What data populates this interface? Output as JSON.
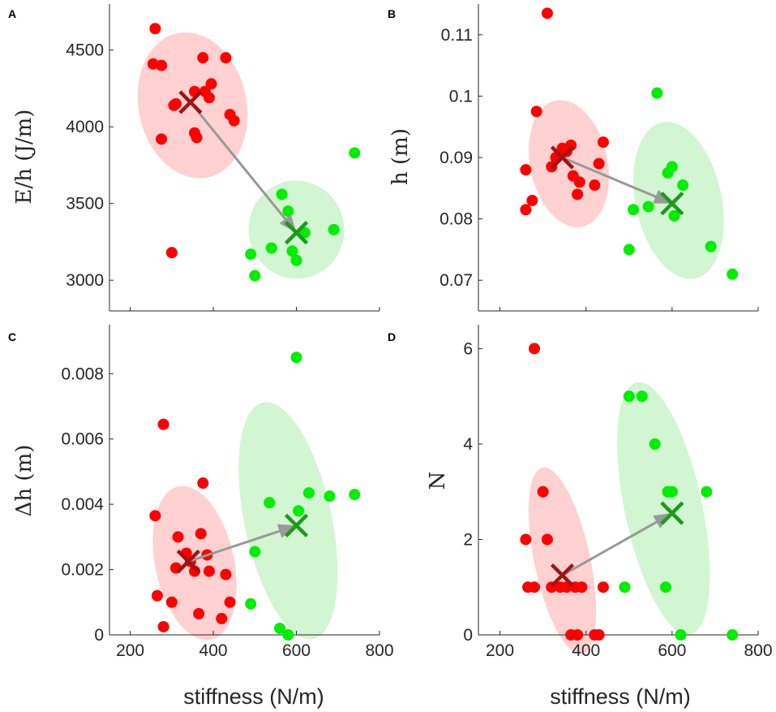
{
  "colors": {
    "red": "#ff0000",
    "green": "#00ee00",
    "dark_red": "#a01414",
    "dark_green": "#1c9a1c",
    "ellipse_red": "#ffcccc",
    "ellipse_green": "#ccf5cc",
    "arrow": "#999999"
  },
  "chart_data": [
    {
      "type": "scatter",
      "panel": "A",
      "ylabel": "E/h (J/m)",
      "xlabel": "",
      "xlim": [
        150,
        800
      ],
      "ylim": [
        2800,
        4800
      ],
      "xticks": [
        200,
        400,
        600,
        800
      ],
      "yticks": [
        "3000",
        "3500",
        "4000",
        "4500"
      ],
      "show_x_tick_labels": false,
      "series": [
        {
          "name": "red",
          "points": [
            [
              260,
              4640
            ],
            [
              255,
              4410
            ],
            [
              275,
              4400
            ],
            [
              275,
              3920
            ],
            [
              310,
              4150
            ],
            [
              305,
              4140
            ],
            [
              355,
              3960
            ],
            [
              360,
              3930
            ],
            [
              355,
              4230
            ],
            [
              375,
              4450
            ],
            [
              380,
              4230
            ],
            [
              390,
              4190
            ],
            [
              395,
              4280
            ],
            [
              430,
              4450
            ],
            [
              440,
              4080
            ],
            [
              450,
              4040
            ],
            [
              300,
              3180
            ]
          ]
        },
        {
          "name": "green",
          "points": [
            [
              490,
              3170
            ],
            [
              500,
              3030
            ],
            [
              540,
              3210
            ],
            [
              565,
              3560
            ],
            [
              580,
              3450
            ],
            [
              590,
              3190
            ],
            [
              600,
              3130
            ],
            [
              620,
              3310
            ],
            [
              690,
              3330
            ],
            [
              740,
              3830
            ]
          ]
        }
      ],
      "means": {
        "red": [
          345,
          4160
        ],
        "green": [
          600,
          3310
        ]
      },
      "ellipses": {
        "red": {
          "cx": 350,
          "cy": 4140,
          "rx": 130,
          "ry": 480
        },
        "green": {
          "cx": 600,
          "cy": 3330,
          "rx": 115,
          "ry": 320
        }
      }
    },
    {
      "type": "scatter",
      "panel": "B",
      "ylabel": "h (m)",
      "xlabel": "",
      "xlim": [
        150,
        800
      ],
      "ylim": [
        0.065,
        0.115
      ],
      "xticks": [
        200,
        400,
        600,
        800
      ],
      "yticks": [
        "0.07",
        "0.08",
        "0.09",
        "0.1",
        "0.11"
      ],
      "show_x_tick_labels": false,
      "series": [
        {
          "name": "red",
          "points": [
            [
              310,
              0.1135
            ],
            [
              285,
              0.0975
            ],
            [
              260,
              0.088
            ],
            [
              260,
              0.0815
            ],
            [
              275,
              0.083
            ],
            [
              320,
              0.0885
            ],
            [
              330,
              0.09
            ],
            [
              340,
              0.0905
            ],
            [
              345,
              0.0915
            ],
            [
              355,
              0.091
            ],
            [
              365,
              0.092
            ],
            [
              370,
              0.087
            ],
            [
              380,
              0.084
            ],
            [
              385,
              0.086
            ],
            [
              420,
              0.0855
            ],
            [
              430,
              0.089
            ],
            [
              440,
              0.0925
            ]
          ]
        },
        {
          "name": "green",
          "points": [
            [
              500,
              0.075
            ],
            [
              510,
              0.0815
            ],
            [
              545,
              0.082
            ],
            [
              565,
              0.1005
            ],
            [
              590,
              0.0875
            ],
            [
              600,
              0.0885
            ],
            [
              605,
              0.0805
            ],
            [
              625,
              0.0855
            ],
            [
              690,
              0.0755
            ],
            [
              740,
              0.071
            ]
          ]
        }
      ],
      "means": {
        "red": [
          345,
          0.09
        ],
        "green": [
          600,
          0.0825
        ]
      },
      "ellipses": {
        "red": {
          "cx": 360,
          "cy": 0.089,
          "rx": 90,
          "ry": 0.0105
        },
        "green": {
          "cx": 615,
          "cy": 0.083,
          "rx": 100,
          "ry": 0.013
        }
      }
    },
    {
      "type": "scatter",
      "panel": "C",
      "ylabel": "Δh (m)",
      "xlabel": "stiffness (N/m)",
      "xlim": [
        150,
        800
      ],
      "ylim": [
        0,
        0.0095
      ],
      "xticks": [
        200,
        400,
        600,
        800
      ],
      "xtick_labels": [
        "200",
        "400",
        "600",
        "800"
      ],
      "yticks": [
        "0",
        "0.002",
        "0.004",
        "0.006",
        "0.008"
      ],
      "show_x_tick_labels": true,
      "series": [
        {
          "name": "red",
          "points": [
            [
              280,
              0.00645
            ],
            [
              260,
              0.00365
            ],
            [
              265,
              0.0012
            ],
            [
              280,
              0.00025
            ],
            [
              300,
              0.001
            ],
            [
              310,
              0.00205
            ],
            [
              315,
              0.003
            ],
            [
              335,
              0.0025
            ],
            [
              345,
              0.00225
            ],
            [
              355,
              0.00195
            ],
            [
              365,
              0.00065
            ],
            [
              370,
              0.0031
            ],
            [
              375,
              0.00465
            ],
            [
              385,
              0.00245
            ],
            [
              390,
              0.00195
            ],
            [
              420,
              0.0005
            ],
            [
              430,
              0.00185
            ],
            [
              440,
              0.001
            ]
          ]
        },
        {
          "name": "green",
          "points": [
            [
              490,
              0.00095
            ],
            [
              500,
              0.00255
            ],
            [
              535,
              0.00405
            ],
            [
              560,
              0.0002
            ],
            [
              580,
              0.0
            ],
            [
              600,
              0.0085
            ],
            [
              605,
              0.0038
            ],
            [
              630,
              0.00435
            ],
            [
              680,
              0.00425
            ],
            [
              740,
              0.0043
            ]
          ]
        }
      ],
      "means": {
        "red": [
          340,
          0.00225
        ],
        "green": [
          600,
          0.00335
        ]
      },
      "ellipses": {
        "red": {
          "cx": 355,
          "cy": 0.0022,
          "rx": 95,
          "ry": 0.0024
        },
        "green": {
          "cx": 580,
          "cy": 0.0035,
          "rx": 105,
          "ry": 0.0037
        }
      }
    },
    {
      "type": "scatter",
      "panel": "D",
      "ylabel": "N",
      "xlabel": "stiffness (N/m)",
      "xlim": [
        150,
        800
      ],
      "ylim": [
        0,
        6.5
      ],
      "xticks": [
        200,
        400,
        600,
        800
      ],
      "xtick_labels": [
        "200",
        "400",
        "600",
        "800"
      ],
      "yticks": [
        "0",
        "2",
        "4",
        "6"
      ],
      "show_x_tick_labels": true,
      "series": [
        {
          "name": "red",
          "points": [
            [
              280,
              6
            ],
            [
              260,
              2
            ],
            [
              265,
              1
            ],
            [
              280,
              1
            ],
            [
              300,
              3
            ],
            [
              310,
              2
            ],
            [
              320,
              1
            ],
            [
              340,
              1
            ],
            [
              355,
              1
            ],
            [
              365,
              0
            ],
            [
              375,
              1
            ],
            [
              380,
              0
            ],
            [
              390,
              1
            ],
            [
              420,
              0
            ],
            [
              430,
              0
            ],
            [
              440,
              1
            ]
          ]
        },
        {
          "name": "green",
          "points": [
            [
              490,
              1
            ],
            [
              500,
              5
            ],
            [
              530,
              5
            ],
            [
              560,
              4
            ],
            [
              585,
              1
            ],
            [
              590,
              3
            ],
            [
              600,
              3
            ],
            [
              620,
              0
            ],
            [
              680,
              3
            ],
            [
              740,
              0
            ]
          ]
        }
      ],
      "means": {
        "red": [
          345,
          1.25
        ],
        "green": [
          600,
          2.55
        ]
      },
      "ellipses": {
        "red": {
          "cx": 345,
          "cy": 1.55,
          "rx": 65,
          "ry": 2.0
        },
        "green": {
          "cx": 580,
          "cy": 2.65,
          "rx": 90,
          "ry": 2.7
        }
      }
    }
  ]
}
